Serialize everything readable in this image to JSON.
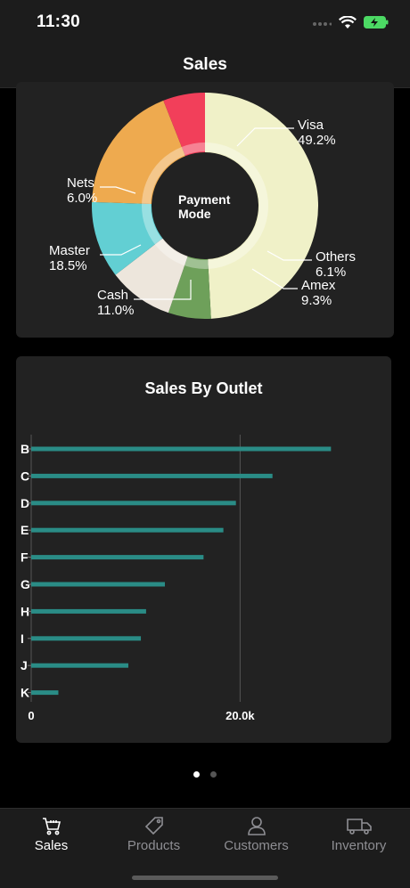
{
  "status_bar": {
    "time": "11:30"
  },
  "header": {
    "title": "Sales"
  },
  "payment_chart": {
    "chart_data": {
      "type": "pie",
      "center_label_lines": [
        "Payment",
        "Mode"
      ],
      "slices": [
        {
          "label": "Visa",
          "value": 49.2,
          "display": "49.2%",
          "color": "#f0f1c8"
        },
        {
          "label": "Others",
          "value": 6.1,
          "display": "6.1%",
          "color": "#6ea05a"
        },
        {
          "label": "Amex",
          "value": 9.3,
          "display": "9.3%",
          "color": "#ede6dc"
        },
        {
          "label": "Cash",
          "value": 11.0,
          "display": "11.0%",
          "color": "#62cfd3"
        },
        {
          "label": "Master",
          "value": 18.5,
          "display": "18.5%",
          "color": "#eeaa4f"
        },
        {
          "label": "Nets",
          "value": 6.0,
          "display": "6.0%",
          "color": "#f23f5a"
        }
      ]
    }
  },
  "outlet_chart": {
    "title": "Sales By Outlet",
    "chart_data": {
      "type": "bar",
      "orientation": "horizontal",
      "title": "Sales By Outlet",
      "categories": [
        "B",
        "C",
        "D",
        "E",
        "F",
        "G",
        "H",
        "I",
        "J",
        "K"
      ],
      "values": [
        28700,
        23100,
        19600,
        18400,
        16500,
        12800,
        11000,
        10500,
        9300,
        2600
      ],
      "xlim": [
        0,
        32000
      ],
      "x_ticks": [
        0,
        20000
      ],
      "x_tick_labels": [
        "0",
        "20.0k"
      ],
      "bar_color": "#2a8c86",
      "grid": true
    }
  },
  "pager": {
    "pages": 2,
    "active": 0
  },
  "tabs": [
    {
      "label": "Sales",
      "icon": "cart-icon",
      "active": true
    },
    {
      "label": "Products",
      "icon": "tag-icon",
      "active": false
    },
    {
      "label": "Customers",
      "icon": "person-icon",
      "active": false
    },
    {
      "label": "Inventory",
      "icon": "truck-icon",
      "active": false
    }
  ],
  "colors": {
    "background": "#000000",
    "card": "#222222",
    "bar": "#2a8c86",
    "tab_active": "#ffffff",
    "tab_inactive": "#8e8e93"
  }
}
